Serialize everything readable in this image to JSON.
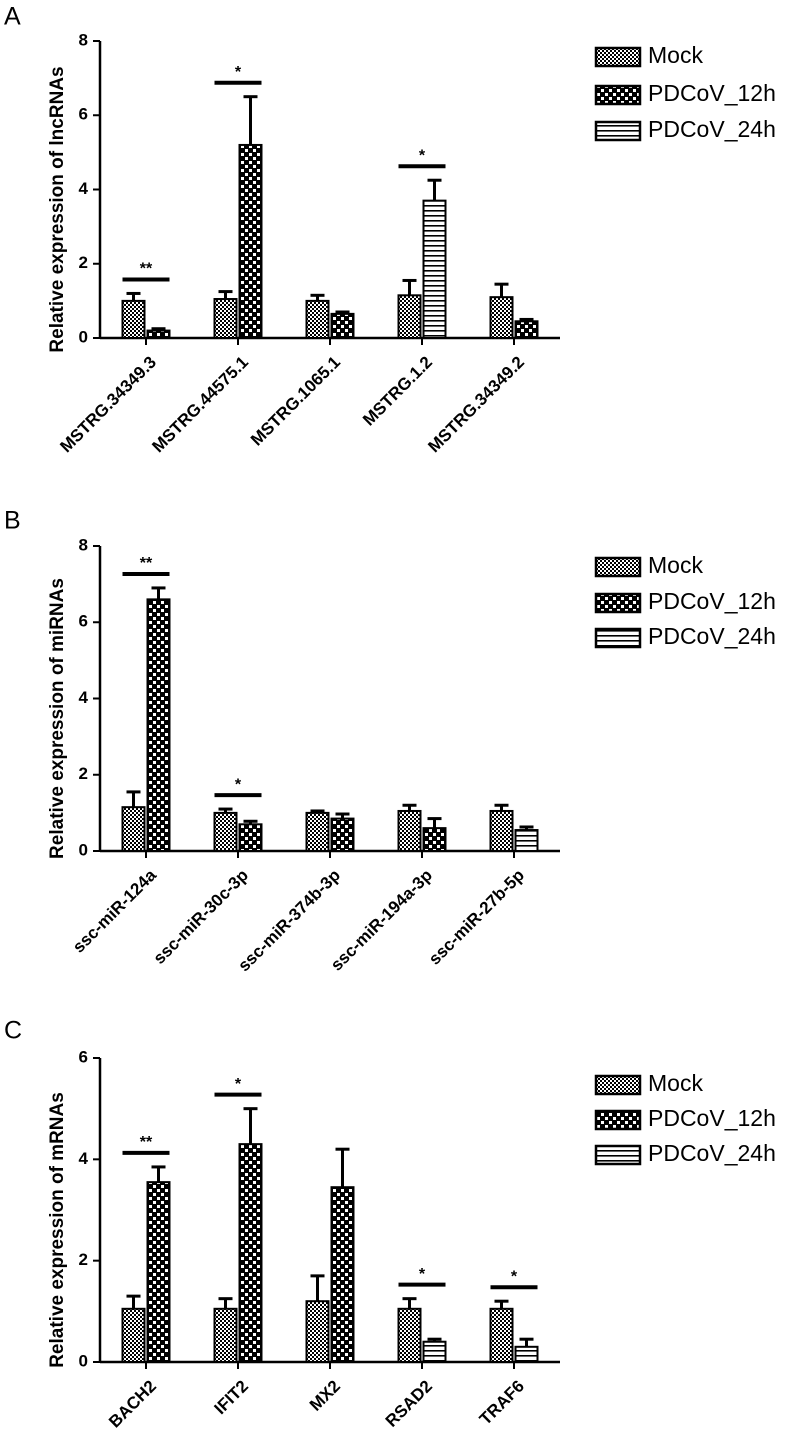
{
  "chart_data": [
    {
      "type": "bar",
      "label": "A",
      "y_label": "Relative expression of  lncRNAs",
      "categories": [
        "MSTRG.34349.3",
        "MSTRG.44575.1",
        "MSTRG.1065.1",
        "MSTRG.1.2",
        "MSTRG.34349.2"
      ],
      "series": [
        {
          "name": "Mock",
          "color": "#000000",
          "values": [
            1.0,
            1.05,
            1.0,
            1.15,
            1.1
          ],
          "errors": [
            0.2,
            0.2,
            0.15,
            0.4,
            0.35
          ]
        },
        {
          "name": "PDCoV_12h",
          "color": "#000000",
          "values": [
            0.2,
            5.2,
            0.65,
            null,
            0.45
          ],
          "errors": [
            0.05,
            1.3,
            0.05,
            null,
            0.05
          ]
        },
        {
          "name": "PDCoV_24h",
          "color": "#000000",
          "values": [
            null,
            null,
            null,
            3.7,
            null
          ],
          "errors": [
            null,
            null,
            null,
            0.55,
            null
          ]
        }
      ],
      "annotations": [
        {
          "category": "MSTRG.34349.3",
          "text": "**"
        },
        {
          "category": "MSTRG.44575.1",
          "text": "*"
        },
        {
          "category": "MSTRG.1.2",
          "text": "*"
        }
      ],
      "ylim": [
        0,
        8
      ],
      "yticks": [
        0,
        2,
        4,
        6,
        8
      ]
    },
    {
      "type": "bar",
      "label": "B",
      "y_label": "Relative expression of  miRNAs",
      "categories": [
        "ssc-miR-124a",
        "ssc-miR-30c-3p",
        "ssc-miR-374b-3p",
        "ssc-miR-194a-3p",
        "ssc-miR-27b-5p"
      ],
      "series": [
        {
          "name": "Mock",
          "color": "#000000",
          "values": [
            1.15,
            1.0,
            1.0,
            1.05,
            1.05
          ],
          "errors": [
            0.4,
            0.1,
            0.05,
            0.15,
            0.15
          ]
        },
        {
          "name": "PDCoV_12h",
          "color": "#000000",
          "values": [
            6.6,
            0.7,
            0.85,
            0.6,
            null
          ],
          "errors": [
            0.3,
            0.08,
            0.12,
            0.25,
            null
          ]
        },
        {
          "name": "PDCoV_24h",
          "color": "#000000",
          "values": [
            null,
            null,
            null,
            null,
            0.55
          ],
          "errors": [
            null,
            null,
            null,
            null,
            0.08
          ]
        }
      ],
      "annotations": [
        {
          "category": "ssc-miR-124a",
          "text": "**"
        },
        {
          "category": "ssc-miR-30c-3p",
          "text": "*"
        }
      ],
      "ylim": [
        0,
        8
      ],
      "yticks": [
        0,
        2,
        4,
        6,
        8
      ]
    },
    {
      "type": "bar",
      "label": "C",
      "y_label": "Relative expression of  mRNAs",
      "categories": [
        "BACH2",
        "IFIT2",
        "MX2",
        "RSAD2",
        "TRAF6"
      ],
      "series": [
        {
          "name": "Mock",
          "color": "#000000",
          "values": [
            1.05,
            1.05,
            1.2,
            1.05,
            1.05
          ],
          "errors": [
            0.25,
            0.2,
            0.5,
            0.2,
            0.15
          ]
        },
        {
          "name": "PDCoV_12h",
          "color": "#000000",
          "values": [
            3.55,
            4.3,
            3.45,
            null,
            null
          ],
          "errors": [
            0.3,
            0.7,
            0.75,
            null,
            null
          ]
        },
        {
          "name": "PDCoV_24h",
          "color": "#000000",
          "values": [
            null,
            null,
            null,
            0.4,
            0.3
          ],
          "errors": [
            null,
            null,
            null,
            0.05,
            0.15
          ]
        }
      ],
      "annotations": [
        {
          "category": "BACH2",
          "text": "**"
        },
        {
          "category": "IFIT2",
          "text": "*"
        },
        {
          "category": "RSAD2",
          "text": "*"
        },
        {
          "category": "TRAF6",
          "text": "*"
        }
      ],
      "ylim": [
        0,
        6
      ],
      "yticks": [
        0,
        2,
        4,
        6
      ]
    }
  ]
}
